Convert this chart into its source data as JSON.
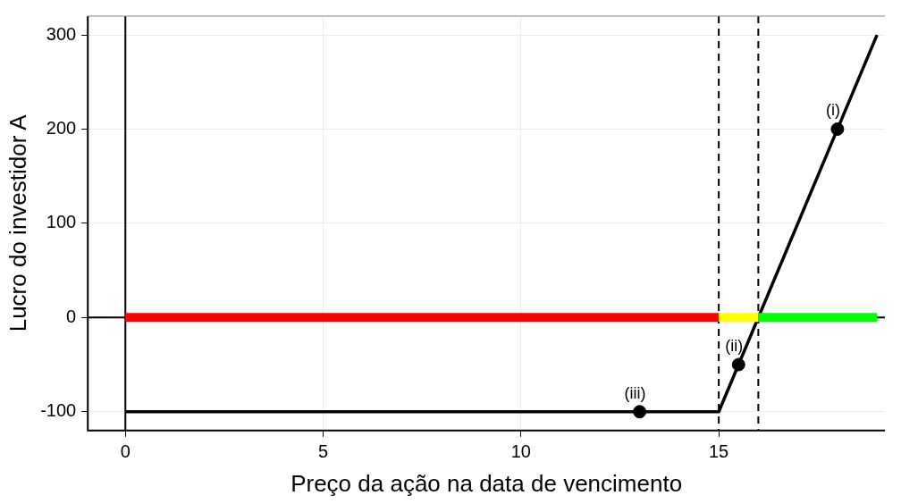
{
  "chart_data": {
    "type": "line",
    "xlabel": "Preço da ação na data de vencimento",
    "ylabel": "Lucro do investidor A",
    "xlim": [
      -0.95,
      19.2
    ],
    "ylim": [
      -120,
      320
    ],
    "xticks": [
      0,
      5,
      10,
      15
    ],
    "yticks": [
      -100,
      0,
      100,
      200,
      300
    ],
    "grid": true,
    "legend": false,
    "series": [
      {
        "color": "#ff0000",
        "x": [
          0,
          15
        ],
        "values": [
          0,
          0
        ],
        "marker": "none"
      },
      {
        "color": "#ffff00",
        "x": [
          15,
          16
        ],
        "values": [
          0,
          0
        ],
        "marker": "none"
      },
      {
        "color": "#00ff00",
        "x": [
          16,
          19
        ],
        "values": [
          0,
          0
        ],
        "marker": "none"
      },
      {
        "color": "#000000",
        "x": [
          0,
          15,
          19
        ],
        "values": [
          -100,
          -100,
          300
        ],
        "marker": "none"
      },
      {
        "type": "scatter",
        "color": "#000000",
        "x": [
          18,
          15.5,
          13
        ],
        "values": [
          200,
          -50,
          -100
        ],
        "marker": "circle"
      }
    ],
    "ref_lines": [
      {
        "axis": "x",
        "value": 0,
        "color": "#000000",
        "line_style": "solid"
      },
      {
        "axis": "y",
        "value": 0,
        "color": "#000000",
        "line_style": "solid"
      },
      {
        "axis": "x",
        "value": 15,
        "color": "#000000",
        "line_style": "dashed"
      },
      {
        "axis": "x",
        "value": 16,
        "color": "#000000",
        "line_style": "dashed"
      }
    ],
    "annotations": [
      {
        "text": "(i)",
        "x": 18,
        "y": 200
      },
      {
        "text": "(ii)",
        "x": 15.5,
        "y": -50
      },
      {
        "text": "(iii)",
        "x": 13,
        "y": -100
      }
    ]
  }
}
